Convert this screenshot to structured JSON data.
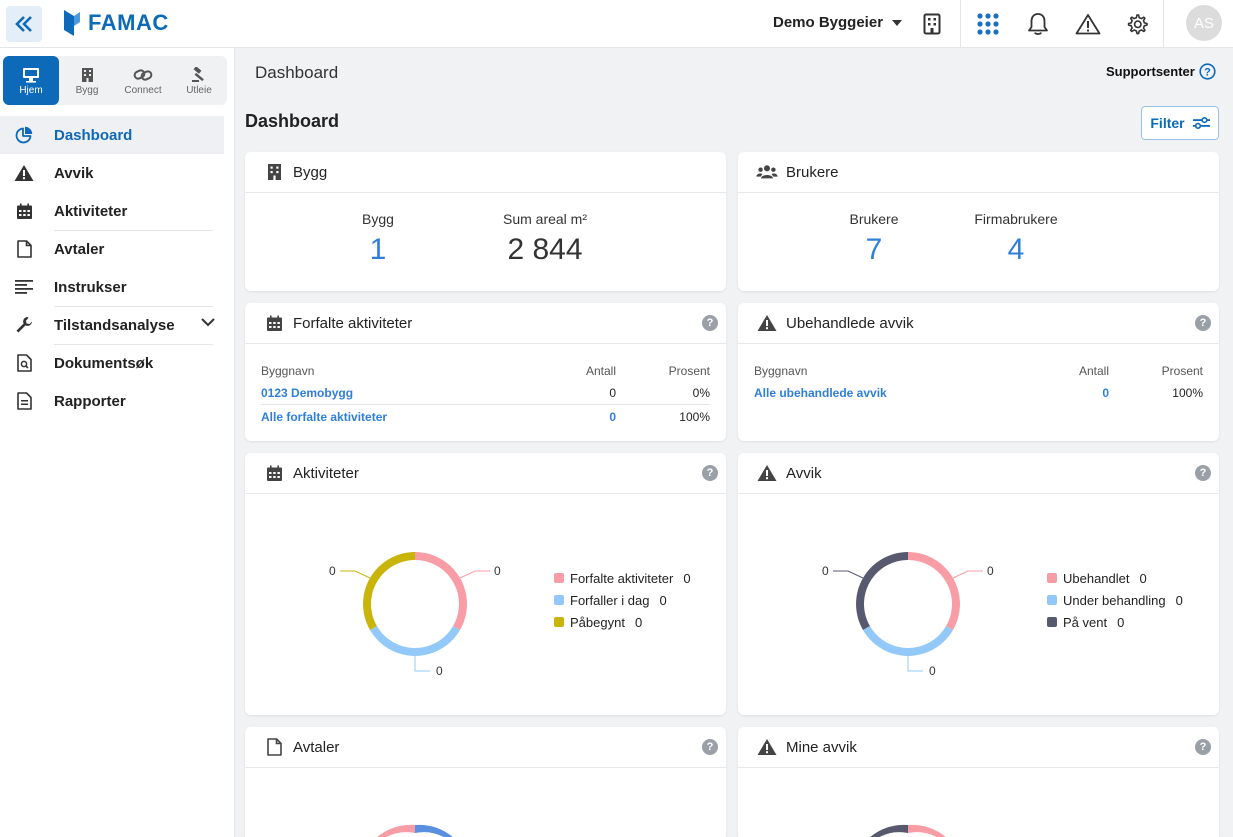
{
  "header": {
    "logo_text": "FAMAC",
    "org_name": "Demo Byggeier",
    "avatar_initials": "AS"
  },
  "sidebar": {
    "modules": [
      {
        "label": "Hjem",
        "icon": "monitor-icon",
        "active": true
      },
      {
        "label": "Bygg",
        "icon": "building-icon",
        "active": false
      },
      {
        "label": "Connect",
        "icon": "link-icon",
        "active": false
      },
      {
        "label": "Utleie",
        "icon": "gavel-icon",
        "active": false
      }
    ],
    "nav": [
      {
        "label": "Dashboard",
        "icon": "pie-chart-icon",
        "active": true
      },
      {
        "label": "Avvik",
        "icon": "warning-icon"
      },
      {
        "label": "Aktiviteter",
        "icon": "calendar-icon"
      },
      {
        "label": "Avtaler",
        "icon": "document-icon"
      },
      {
        "label": "Instrukser",
        "icon": "list-icon"
      },
      {
        "label": "Tilstandsanalyse",
        "icon": "wrench-icon"
      },
      {
        "label": "Dokumentsøk",
        "icon": "doc-search-icon"
      },
      {
        "label": "Rapporter",
        "icon": "report-icon"
      }
    ]
  },
  "main": {
    "breadcrumb_title": "Dashboard",
    "support_label": "Supportsenter",
    "page_heading": "Dashboard",
    "filter_label": "Filter"
  },
  "cards": {
    "bygg": {
      "title": "Bygg",
      "stats": [
        {
          "label": "Bygg",
          "value": "1"
        },
        {
          "label": "Sum areal m²",
          "value": "2 844"
        }
      ]
    },
    "brukere": {
      "title": "Brukere",
      "stats": [
        {
          "label": "Brukere",
          "value": "7"
        },
        {
          "label": "Firmabrukere",
          "value": "4"
        }
      ]
    },
    "forfalte": {
      "title": "Forfalte aktiviteter",
      "help": "?",
      "columns": [
        "Byggnavn",
        "Antall",
        "Prosent"
      ],
      "rows": [
        {
          "name": "0123 Demobygg",
          "count": "0",
          "percent": "0%"
        },
        {
          "name": "Alle forfalte aktiviteter",
          "count": "0",
          "percent": "100%"
        }
      ]
    },
    "ubehandlede": {
      "title": "Ubehandlede avvik",
      "help": "?",
      "columns": [
        "Byggnavn",
        "Antall",
        "Prosent"
      ],
      "rows": [
        {
          "name": "Alle ubehandlede avvik",
          "count": "0",
          "percent": "100%"
        }
      ]
    },
    "aktiviteter": {
      "title": "Aktiviteter",
      "help": "?",
      "legend": [
        {
          "label": "Forfalte aktiviteter",
          "count": "0",
          "color": "#f89ca6"
        },
        {
          "label": "Forfaller i dag",
          "count": "0",
          "color": "#93c9f8"
        },
        {
          "label": "Påbegynt",
          "count": "0",
          "color": "#c9b40a"
        }
      ],
      "slice_labels": [
        "0",
        "0",
        "0"
      ]
    },
    "avvik": {
      "title": "Avvik",
      "help": "?",
      "legend": [
        {
          "label": "Ubehandlet",
          "count": "0",
          "color": "#f89ca6"
        },
        {
          "label": "Under behandling",
          "count": "0",
          "color": "#93c9f8"
        },
        {
          "label": "På vent",
          "count": "0",
          "color": "#575a6e"
        }
      ],
      "slice_labels": [
        "0",
        "0",
        "0"
      ]
    },
    "avtaler": {
      "title": "Avtaler",
      "help": "?"
    },
    "mine_avvik": {
      "title": "Mine avvik",
      "help": "?"
    }
  }
}
